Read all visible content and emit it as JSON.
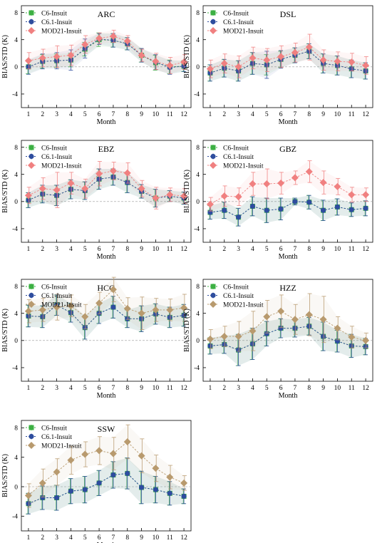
{
  "colors": {
    "c6": "#3cb043",
    "c61": "#2e4d9e",
    "mod_red": "#f08080",
    "mod_tan": "#b89a6e",
    "zero_line": "#9a9a9a"
  },
  "chart_data": [
    {
      "type": "line",
      "title": "ARC",
      "xlabel": "Month",
      "ylabel": "BIAS/STD (K)",
      "ylim": [
        -6,
        9
      ],
      "yticks": [
        -4,
        0,
        4,
        8
      ],
      "categories": [
        "1",
        "2",
        "3",
        "4",
        "5",
        "6",
        "7",
        "8",
        "9",
        "10",
        "11",
        "12"
      ],
      "legend_position": "top-left",
      "series": [
        {
          "name": "C6-Insuit",
          "marker": "square",
          "color": "#3cb043",
          "values": [
            0.0,
            0.8,
            0.9,
            1.0,
            2.6,
            4.0,
            3.9,
            3.4,
            1.7,
            0.6,
            0.0,
            0.1
          ],
          "std": [
            1.0,
            1.0,
            1.0,
            1.0,
            1.0,
            1.0,
            1.0,
            0.9,
            1.0,
            1.1,
            1.0,
            0.8
          ]
        },
        {
          "name": "C6.1-Insuit",
          "marker": "circle",
          "color": "#2e4d9e",
          "values": [
            0.0,
            0.8,
            0.9,
            1.0,
            2.7,
            4.1,
            3.9,
            3.4,
            1.7,
            0.7,
            -0.1,
            0.1
          ],
          "std": [
            1.1,
            1.1,
            1.2,
            1.5,
            1.4,
            0.8,
            1.0,
            0.9,
            1.0,
            1.1,
            1.0,
            0.8
          ]
        },
        {
          "name": "MOD21-Insuit",
          "marker": "diamond",
          "color": "#f08080",
          "values": [
            0.9,
            1.3,
            1.5,
            1.7,
            3.3,
            4.2,
            4.5,
            3.8,
            1.7,
            0.8,
            0.2,
            0.7
          ],
          "std": [
            1.2,
            1.3,
            1.6,
            1.5,
            1.3,
            0.8,
            0.9,
            0.8,
            0.9,
            1.2,
            1.2,
            1.1
          ]
        }
      ]
    },
    {
      "type": "line",
      "title": "DSL",
      "xlabel": "Month",
      "ylabel": "BIAS/STD (K)",
      "ylim": [
        -6,
        9
      ],
      "yticks": [
        -4,
        0,
        4,
        8
      ],
      "categories": [
        "1",
        "2",
        "3",
        "4",
        "5",
        "6",
        "7",
        "8",
        "9",
        "10",
        "11",
        "12"
      ],
      "legend_position": "top-left",
      "series": [
        {
          "name": "C6-Insuit",
          "marker": "square",
          "color": "#3cb043",
          "values": [
            -0.9,
            -0.2,
            -0.6,
            0.5,
            0.3,
            1.1,
            1.7,
            2.3,
            0.5,
            0.2,
            -0.3,
            -0.6
          ],
          "std": [
            1.2,
            1.3,
            1.5,
            1.6,
            1.5,
            1.2,
            1.1,
            1.1,
            1.4,
            1.4,
            1.3,
            1.2
          ]
        },
        {
          "name": "C6.1-Insuit",
          "marker": "circle",
          "color": "#2e4d9e",
          "values": [
            -0.9,
            -0.2,
            -0.6,
            0.5,
            0.3,
            1.1,
            1.7,
            2.3,
            0.5,
            0.2,
            -0.3,
            -0.6
          ],
          "std": [
            1.2,
            1.3,
            1.5,
            1.6,
            2.0,
            1.3,
            1.1,
            1.1,
            1.4,
            1.4,
            1.3,
            1.2
          ]
        },
        {
          "name": "MOD21-Insuit",
          "marker": "diamond",
          "color": "#f08080",
          "values": [
            -0.3,
            0.5,
            0.0,
            1.3,
            1.0,
            1.5,
            2.1,
            2.9,
            1.0,
            0.8,
            0.7,
            0.2
          ],
          "std": [
            1.3,
            1.4,
            1.6,
            1.6,
            1.7,
            1.6,
            1.4,
            1.9,
            1.5,
            1.4,
            1.3,
            1.3
          ]
        }
      ]
    },
    {
      "type": "line",
      "title": "EBZ",
      "xlabel": "Month",
      "ylabel": "BIAS/STD (K)",
      "ylim": [
        -6,
        9
      ],
      "yticks": [
        -4,
        0,
        4,
        8
      ],
      "categories": [
        "1",
        "2",
        "3",
        "4",
        "5",
        "6",
        "7",
        "8",
        "9",
        "10",
        "11",
        "12"
      ],
      "legend_position": "top-left",
      "series": [
        {
          "name": "C6-Insuit",
          "marker": "square",
          "color": "#3cb043",
          "values": [
            0.2,
            1.1,
            0.9,
            1.8,
            1.6,
            3.3,
            3.6,
            2.8,
            1.5,
            0.5,
            0.8,
            0.5
          ],
          "std": [
            1.1,
            1.3,
            1.5,
            1.4,
            1.3,
            1.5,
            1.2,
            1.5,
            1.0,
            1.3,
            0.8,
            0.9
          ]
        },
        {
          "name": "C6.1-Insuit",
          "marker": "circle",
          "color": "#2e4d9e",
          "values": [
            0.2,
            1.1,
            0.9,
            1.8,
            1.6,
            3.3,
            3.6,
            2.8,
            1.5,
            0.5,
            0.8,
            0.5
          ],
          "std": [
            1.1,
            1.3,
            1.5,
            1.4,
            1.3,
            1.5,
            1.2,
            1.5,
            1.0,
            1.3,
            0.8,
            0.9
          ]
        },
        {
          "name": "MOD21-Insuit",
          "marker": "diamond",
          "color": "#f08080",
          "values": [
            0.9,
            1.9,
            1.7,
            2.7,
            1.9,
            4.1,
            4.5,
            4.2,
            1.9,
            0.5,
            1.0,
            0.8
          ],
          "std": [
            1.2,
            1.6,
            2.6,
            1.6,
            1.4,
            1.8,
            1.3,
            1.5,
            1.2,
            1.6,
            1.0,
            1.1
          ]
        }
      ]
    },
    {
      "type": "line",
      "title": "GBZ",
      "xlabel": "Month",
      "ylabel": "BIAS/STD (K)",
      "ylim": [
        -6,
        9
      ],
      "yticks": [
        -4,
        0,
        4,
        8
      ],
      "categories": [
        "1",
        "2",
        "3",
        "4",
        "5",
        "6",
        "7",
        "8",
        "9",
        "10",
        "11",
        "12"
      ],
      "legend_position": "top-left",
      "series": [
        {
          "name": "C6-Insuit",
          "marker": "square",
          "color": "#3cb043",
          "values": [
            -1.6,
            -1.3,
            -2.3,
            -0.7,
            -1.3,
            -1.1,
            0.0,
            -0.1,
            -1.3,
            -0.8,
            -1.2,
            -1.0
          ],
          "std": [
            1.0,
            1.2,
            1.3,
            1.4,
            1.8,
            1.6,
            0.5,
            1.0,
            1.5,
            1.2,
            1.0,
            1.1
          ]
        },
        {
          "name": "C6.1-Insuit",
          "marker": "circle",
          "color": "#2e4d9e",
          "values": [
            -1.6,
            -1.3,
            -2.3,
            -0.7,
            -1.3,
            -1.1,
            0.0,
            -0.1,
            -1.3,
            -0.8,
            -1.2,
            -1.0
          ],
          "std": [
            1.0,
            1.2,
            1.3,
            1.4,
            1.8,
            1.6,
            0.5,
            1.0,
            1.5,
            1.2,
            1.0,
            1.1
          ]
        },
        {
          "name": "MOD21-Insuit",
          "marker": "diamond",
          "color": "#f08080",
          "values": [
            -0.4,
            0.8,
            0.7,
            2.6,
            2.6,
            2.7,
            3.5,
            4.4,
            2.8,
            2.2,
            1.0,
            1.0
          ],
          "std": [
            1.0,
            1.5,
            1.3,
            1.7,
            2.2,
            1.6,
            1.0,
            1.6,
            1.7,
            1.2,
            1.1,
            1.0
          ]
        }
      ]
    },
    {
      "type": "line",
      "title": "HCG",
      "xlabel": "Month",
      "ylabel": "BIAS/STD (K)",
      "ylim": [
        -6,
        9
      ],
      "yticks": [
        -4,
        0,
        4,
        8
      ],
      "categories": [
        "1",
        "2",
        "3",
        "4",
        "5",
        "6",
        "7",
        "8",
        "9",
        "10",
        "11",
        "12"
      ],
      "legend_position": "top-left",
      "series": [
        {
          "name": "C6-Insuit",
          "marker": "square",
          "color": "#3cb043",
          "values": [
            3.6,
            3.5,
            5.2,
            4.1,
            1.9,
            4.0,
            4.9,
            3.2,
            3.2,
            3.9,
            3.4,
            3.7
          ],
          "std": [
            1.6,
            1.6,
            1.5,
            1.4,
            1.7,
            1.5,
            1.6,
            1.3,
            1.9,
            1.5,
            1.5,
            1.6
          ]
        },
        {
          "name": "C6.1-Insuit",
          "marker": "circle",
          "color": "#2e4d9e",
          "values": [
            3.6,
            3.5,
            5.2,
            4.1,
            1.9,
            4.0,
            4.9,
            3.2,
            3.2,
            3.9,
            3.4,
            3.7
          ],
          "std": [
            1.6,
            1.6,
            1.5,
            1.4,
            1.7,
            1.5,
            1.6,
            1.3,
            1.9,
            1.5,
            1.5,
            1.6
          ]
        },
        {
          "name": "MOD21-Insuit",
          "marker": "diamond",
          "color": "#b89a6e",
          "values": [
            4.3,
            4.5,
            4.9,
            5.1,
            3.5,
            5.5,
            7.5,
            4.7,
            4.0,
            4.5,
            4.5,
            4.8
          ],
          "std": [
            1.7,
            1.7,
            1.9,
            1.6,
            1.8,
            1.6,
            1.8,
            1.6,
            2.4,
            1.7,
            1.6,
            2.0
          ]
        }
      ]
    },
    {
      "type": "line",
      "title": "HZZ",
      "xlabel": "Month",
      "ylabel": "BIAS/STD (K)",
      "ylim": [
        -6,
        9
      ],
      "yticks": [
        -4,
        0,
        4,
        8
      ],
      "categories": [
        "1",
        "2",
        "3",
        "4",
        "5",
        "6",
        "7",
        "8",
        "9",
        "10",
        "11",
        "12"
      ],
      "legend_position": "top-left",
      "series": [
        {
          "name": "C6-Insuit",
          "marker": "square",
          "color": "#3cb043",
          "values": [
            -0.8,
            -0.6,
            -1.4,
            -0.5,
            1.0,
            1.8,
            1.8,
            2.1,
            0.6,
            -0.1,
            -0.8,
            -0.9
          ],
          "std": [
            1.2,
            1.3,
            2.3,
            2.3,
            1.8,
            1.4,
            1.3,
            1.3,
            2.1,
            1.6,
            1.7,
            1.2
          ]
        },
        {
          "name": "C6.1-Insuit",
          "marker": "circle",
          "color": "#2e4d9e",
          "values": [
            -0.8,
            -0.6,
            -1.4,
            -0.5,
            1.0,
            1.8,
            1.8,
            2.1,
            0.6,
            -0.1,
            -0.8,
            -0.9
          ],
          "std": [
            1.2,
            1.3,
            2.3,
            2.3,
            1.8,
            1.4,
            1.3,
            1.3,
            2.1,
            1.6,
            1.7,
            1.2
          ]
        },
        {
          "name": "MOD21-Insuit",
          "marker": "diamond",
          "color": "#b89a6e",
          "values": [
            0.2,
            0.6,
            0.6,
            1.4,
            3.5,
            4.3,
            3.1,
            3.8,
            3.1,
            1.8,
            0.5,
            0.0
          ],
          "std": [
            1.4,
            1.5,
            2.2,
            2.9,
            2.4,
            2.4,
            2.2,
            3.1,
            3.4,
            1.7,
            1.6,
            1.1
          ]
        }
      ]
    },
    {
      "type": "line",
      "title": "SSW",
      "xlabel": "Month",
      "ylabel": "BIAS/STD (K)",
      "ylim": [
        -6,
        9
      ],
      "yticks": [
        -4,
        0,
        4,
        8
      ],
      "categories": [
        "1",
        "2",
        "3",
        "4",
        "5",
        "6",
        "7",
        "8",
        "9",
        "10",
        "11",
        "12"
      ],
      "legend_position": "top-left",
      "series": [
        {
          "name": "C6-Insuit",
          "marker": "square",
          "color": "#3cb043",
          "values": [
            -2.3,
            -1.5,
            -1.5,
            -0.6,
            -0.4,
            0.5,
            1.6,
            1.8,
            -0.1,
            -0.4,
            -0.9,
            -1.3
          ],
          "std": [
            1.4,
            1.6,
            1.7,
            1.7,
            1.8,
            1.7,
            1.8,
            2.1,
            2.2,
            1.8,
            1.6,
            1.0
          ]
        },
        {
          "name": "C6.1-Insuit",
          "marker": "circle",
          "color": "#2e4d9e",
          "values": [
            -2.3,
            -1.5,
            -1.5,
            -0.6,
            -0.4,
            0.5,
            1.6,
            1.8,
            -0.1,
            -0.4,
            -0.9,
            -1.3
          ],
          "std": [
            1.4,
            1.6,
            1.7,
            1.7,
            1.8,
            1.7,
            1.8,
            2.1,
            2.2,
            1.8,
            1.6,
            1.0
          ]
        },
        {
          "name": "MOD21-Insuit",
          "marker": "diamond",
          "color": "#b89a6e",
          "values": [
            -1.2,
            0.5,
            2.0,
            3.6,
            4.4,
            4.9,
            4.5,
            6.1,
            4.2,
            2.5,
            1.3,
            0.5
          ],
          "std": [
            1.6,
            1.9,
            1.8,
            1.9,
            1.7,
            1.9,
            2.2,
            2.3,
            2.3,
            1.8,
            1.6,
            1.0
          ]
        }
      ]
    }
  ]
}
